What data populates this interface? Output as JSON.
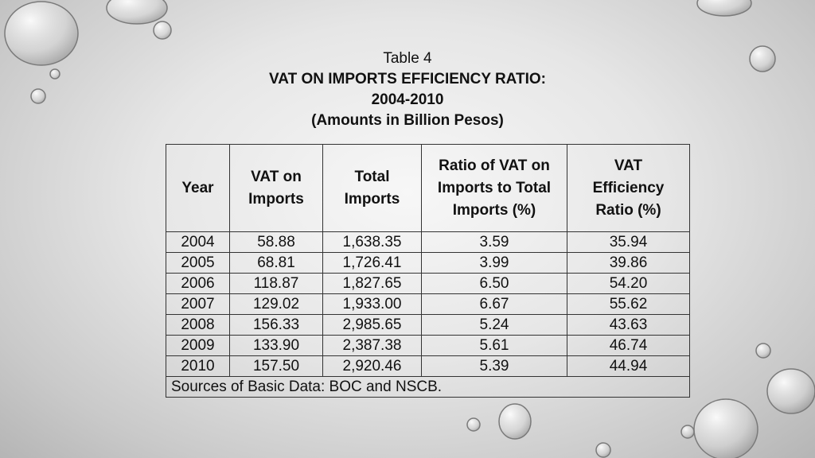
{
  "title": {
    "line1": "Table 4",
    "line2": "VAT ON IMPORTS EFFICIENCY RATIO:",
    "line3": "2004-2010",
    "line4": "(Amounts in Billion Pesos)"
  },
  "table": {
    "headers": [
      "Year",
      "VAT on\nImports",
      "Total\nImports",
      "Ratio of VAT on\nImports to Total\nImports (%)",
      "VAT\nEfficiency\nRatio  (%)"
    ],
    "rows": [
      [
        "2004",
        "58.88",
        "1,638.35",
        "3.59",
        "35.94"
      ],
      [
        "2005",
        "68.81",
        "1,726.41",
        "3.99",
        "39.86"
      ],
      [
        "2006",
        "118.87",
        "1,827.65",
        "6.50",
        "54.20"
      ],
      [
        "2007",
        "129.02",
        "1,933.00",
        "6.67",
        "55.62"
      ],
      [
        "2008",
        "156.33",
        "2,985.65",
        "5.24",
        "43.63"
      ],
      [
        "2009",
        "133.90",
        "2,387.38",
        "5.61",
        "46.74"
      ],
      [
        "2010",
        "157.50",
        "2,920.46",
        "5.39",
        "44.94"
      ]
    ],
    "source": "Sources of Basic Data: BOC and NSCB."
  }
}
